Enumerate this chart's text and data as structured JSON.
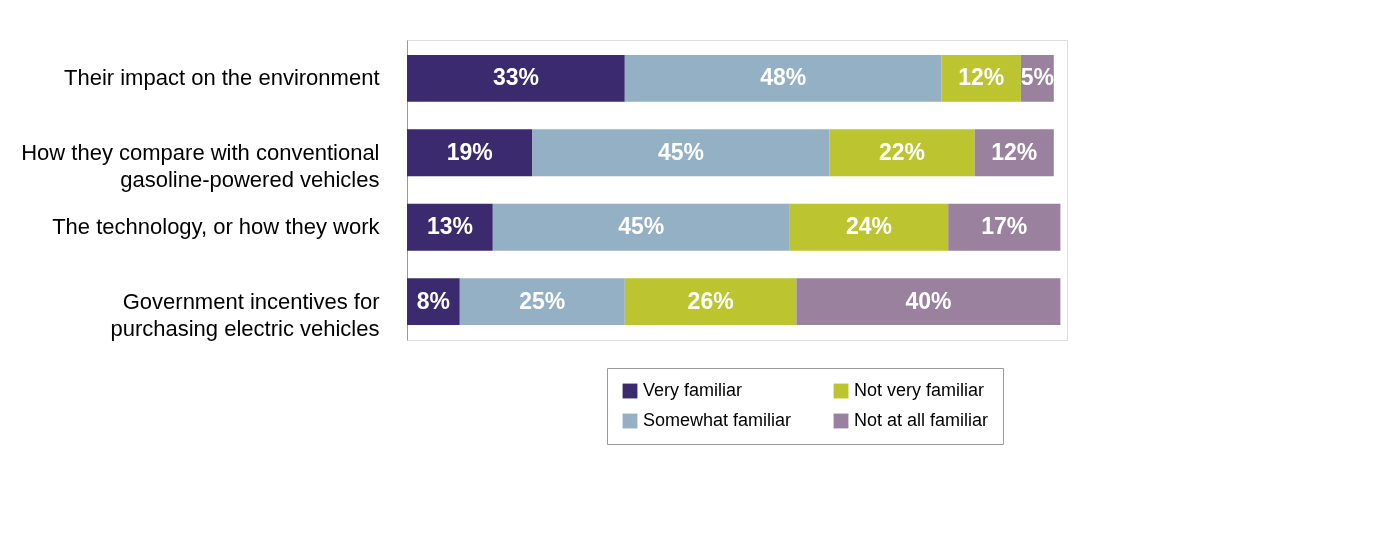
{
  "chart_data": {
    "type": "bar",
    "orientation": "horizontal",
    "stacked": true,
    "xlim": [
      0,
      100
    ],
    "legend": "bottom right",
    "categories": [
      "Their impact on the environment",
      "How they compare with conventional\ngasoline-powered vehicles",
      "The technology, or how they work",
      "Government incentives for\npurchasing electric vehicles"
    ],
    "series": [
      {
        "name": "Very familiar",
        "color": "#3b2a6e",
        "values": [
          33,
          19,
          13,
          8
        ],
        "value_labels": [
          "33%",
          "19%",
          "13%",
          "8%"
        ]
      },
      {
        "name": "Somewhat familiar",
        "color": "#93b0c4",
        "values": [
          48,
          45,
          45,
          25
        ],
        "value_labels": [
          "48%",
          "45%",
          "45%",
          "25%"
        ]
      },
      {
        "name": "Not very familiar",
        "color": "#bcc42f",
        "values": [
          12,
          22,
          24,
          26
        ],
        "value_labels": [
          "12%",
          "22%",
          "24%",
          "26%"
        ]
      },
      {
        "name": "Not at all familiar",
        "color": "#9a819e",
        "values": [
          5,
          12,
          17,
          40
        ],
        "value_labels": [
          "5%",
          "12%",
          "17%",
          "40%"
        ]
      }
    ]
  }
}
